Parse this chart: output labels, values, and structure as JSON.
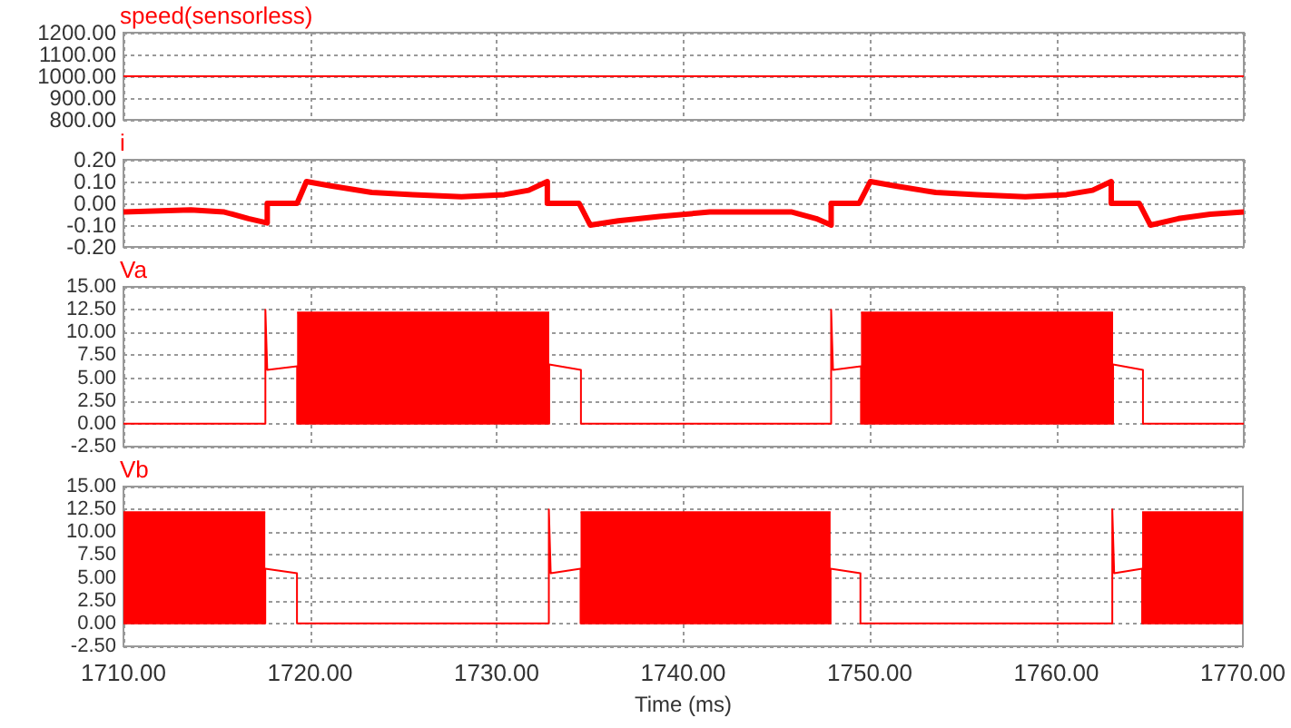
{
  "chart_data": [
    {
      "type": "line",
      "title": "speed(sensorless)",
      "xlim": [
        1710,
        1770
      ],
      "xticks": [
        1710,
        1720,
        1730,
        1740,
        1750,
        1760,
        1770
      ],
      "ylim": [
        800,
        1200
      ],
      "yticks": [
        {
          "value": 800,
          "label": "800.00"
        },
        {
          "value": 900,
          "label": "900.00"
        },
        {
          "value": 1000,
          "label": "1000.00"
        },
        {
          "value": 1100,
          "label": "1100.00"
        },
        {
          "value": 1200,
          "label": "1200.00"
        }
      ],
      "grid": true,
      "tick_labels": "y",
      "series": [
        {
          "color": "#ff0000",
          "x": [
            1710,
            1770
          ],
          "values": [
            1000,
            1000
          ]
        }
      ]
    },
    {
      "type": "line",
      "title": "i",
      "xlim": [
        1710,
        1770
      ],
      "xticks": [
        1710,
        1720,
        1730,
        1740,
        1750,
        1760,
        1770
      ],
      "ylim": [
        -0.2,
        0.2
      ],
      "yticks": [
        {
          "value": -0.2,
          "label": "-0.20"
        },
        {
          "value": -0.1,
          "label": "-0.10"
        },
        {
          "value": 0,
          "label": "0.00"
        },
        {
          "value": 0.1,
          "label": "0.10"
        },
        {
          "value": 0.2,
          "label": "0.20"
        }
      ],
      "grid": true,
      "tick_labels": "y",
      "series": [
        {
          "color": "#ff0000",
          "x": [
            1710.0,
            1713.6,
            1715.4,
            1716.7,
            1717.7,
            1717.7,
            1719.3,
            1719.8,
            1721.1,
            1723.3,
            1725.5,
            1728.1,
            1730.4,
            1731.7,
            1732.7,
            1732.7,
            1734.4,
            1735.0,
            1736.5,
            1738.7,
            1741.4,
            1744.0,
            1745.8,
            1747.1,
            1747.9,
            1747.9,
            1749.4,
            1750.0,
            1751.3,
            1753.5,
            1755.7,
            1758.3,
            1760.5,
            1761.9,
            1762.9,
            1762.9,
            1764.4,
            1765.0,
            1766.5,
            1768.2,
            1770.0
          ],
          "values": [
            -0.04,
            -0.03,
            -0.04,
            -0.07,
            -0.09,
            0,
            0,
            0.1,
            0.08,
            0.05,
            0.04,
            0.03,
            0.04,
            0.06,
            0.1,
            0,
            0,
            -0.1,
            -0.08,
            -0.06,
            -0.04,
            -0.04,
            -0.04,
            -0.07,
            -0.1,
            0,
            0,
            0.1,
            0.08,
            0.05,
            0.04,
            0.03,
            0.04,
            0.06,
            0.1,
            0,
            0,
            -0.1,
            -0.07,
            -0.05,
            -0.04
          ]
        }
      ]
    },
    {
      "type": "line",
      "title": "Va",
      "xlim": [
        1710,
        1770
      ],
      "xticks": [
        1710,
        1720,
        1730,
        1740,
        1750,
        1760,
        1770
      ],
      "ylim": [
        -2.5,
        15
      ],
      "yticks": [
        {
          "value": -2.5,
          "label": "-2.50"
        },
        {
          "value": 0,
          "label": "0.00"
        },
        {
          "value": 2.5,
          "label": "2.50"
        },
        {
          "value": 5,
          "label": "5.00"
        },
        {
          "value": 7.5,
          "label": "7.50"
        },
        {
          "value": 10,
          "label": "10.00"
        },
        {
          "value": 12.5,
          "label": "12.50"
        },
        {
          "value": 15,
          "label": "15.00"
        }
      ],
      "grid": true,
      "tick_labels": "y",
      "series": [
        {
          "color": "#ff0000",
          "x": [
            1710,
            1717.6,
            1717.6,
            1717.7,
            1719.3,
            1719.3,
            1732.8,
            1732.8,
            1734.5,
            1734.5,
            1747.9,
            1747.9,
            1748.0,
            1749.5,
            1749.5,
            1763.0,
            1763.0,
            1764.6,
            1764.6,
            1770
          ],
          "values": [
            0,
            0,
            12.5,
            5.9,
            6.3,
            0,
            0,
            6.5,
            5.9,
            0,
            0,
            12.5,
            5.9,
            6.3,
            0,
            0,
            6.5,
            5.9,
            0,
            0
          ]
        },
        {
          "type": "area",
          "color": "#ff0000",
          "x": [
            1719.3,
            1732.8
          ],
          "values": [
            12.2,
            12.2
          ]
        },
        {
          "type": "area",
          "color": "#ff0000",
          "x": [
            1749.5,
            1763.0
          ],
          "values": [
            12.2,
            12.2
          ]
        }
      ]
    },
    {
      "type": "line",
      "title": "Vb",
      "xlabel": "Time (ms)",
      "xlim": [
        1710,
        1770
      ],
      "xticks": [
        {
          "value": 1710,
          "label": "1710.00"
        },
        {
          "value": 1720,
          "label": "1720.00"
        },
        {
          "value": 1730,
          "label": "1730.00"
        },
        {
          "value": 1740,
          "label": "1740.00"
        },
        {
          "value": 1750,
          "label": "1750.00"
        },
        {
          "value": 1760,
          "label": "1760.00"
        },
        {
          "value": 1770,
          "label": "1770.00"
        }
      ],
      "ylim": [
        -2.5,
        15
      ],
      "yticks": [
        {
          "value": -2.5,
          "label": "-2.50"
        },
        {
          "value": 0,
          "label": "0.00"
        },
        {
          "value": 2.5,
          "label": "2.50"
        },
        {
          "value": 5,
          "label": "5.00"
        },
        {
          "value": 7.5,
          "label": "7.50"
        },
        {
          "value": 10,
          "label": "10.00"
        },
        {
          "value": 12.5,
          "label": "12.50"
        },
        {
          "value": 15,
          "label": "15.00"
        }
      ],
      "grid": true,
      "series": [
        {
          "color": "#ff0000",
          "x": [
            1710,
            1717.6,
            1717.6,
            1719.3,
            1719.3,
            1732.8,
            1732.8,
            1732.9,
            1734.5,
            1734.5,
            1747.9,
            1747.9,
            1749.5,
            1749.5,
            1763.0,
            1763.0,
            1763.1,
            1764.6,
            1764.6,
            1770
          ],
          "values": [
            0,
            0,
            6.0,
            5.5,
            0,
            0,
            12.5,
            5.5,
            6.0,
            0,
            0,
            6.0,
            5.5,
            0,
            0,
            12.5,
            5.5,
            6.0,
            0,
            0
          ]
        },
        {
          "type": "area",
          "color": "#ff0000",
          "x": [
            1710,
            1717.6
          ],
          "values": [
            12.2,
            12.2
          ]
        },
        {
          "type": "area",
          "color": "#ff0000",
          "x": [
            1734.5,
            1747.9
          ],
          "values": [
            12.2,
            12.2
          ]
        },
        {
          "type": "area",
          "color": "#ff0000",
          "x": [
            1764.6,
            1770
          ],
          "values": [
            12.2,
            12.2
          ]
        }
      ]
    }
  ]
}
